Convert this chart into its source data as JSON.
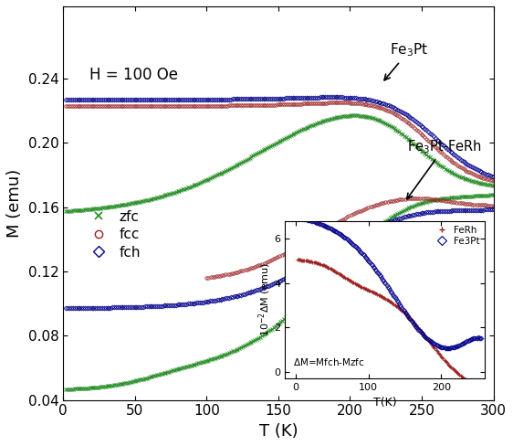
{
  "xlabel": "T (K)",
  "ylabel": "M (emu)",
  "xlim": [
    0,
    300
  ],
  "ylim": [
    0.04,
    0.285
  ],
  "yticks": [
    0.04,
    0.08,
    0.12,
    0.16,
    0.2,
    0.24
  ],
  "xticks": [
    0,
    50,
    100,
    150,
    200,
    250,
    300
  ],
  "label_H": "H = 100 Oe",
  "zfc_color": "#228B22",
  "fcc_color": "#9B2020",
  "fch_color": "#00008B",
  "inset": {
    "xlim": [
      -15,
      260
    ],
    "ylim": [
      -0.3,
      6.8
    ],
    "xlabel": "T(K)",
    "ylabel": "10$^{-2}$$\\Delta$M (emu)",
    "xticks": [
      0,
      100,
      200
    ],
    "yticks": [
      0,
      2,
      4,
      6
    ],
    "ferh_color": "#9B2020",
    "fe3pt_color": "#00008B",
    "annotation": "$\\Delta$M=Mfch-Mzfc"
  }
}
